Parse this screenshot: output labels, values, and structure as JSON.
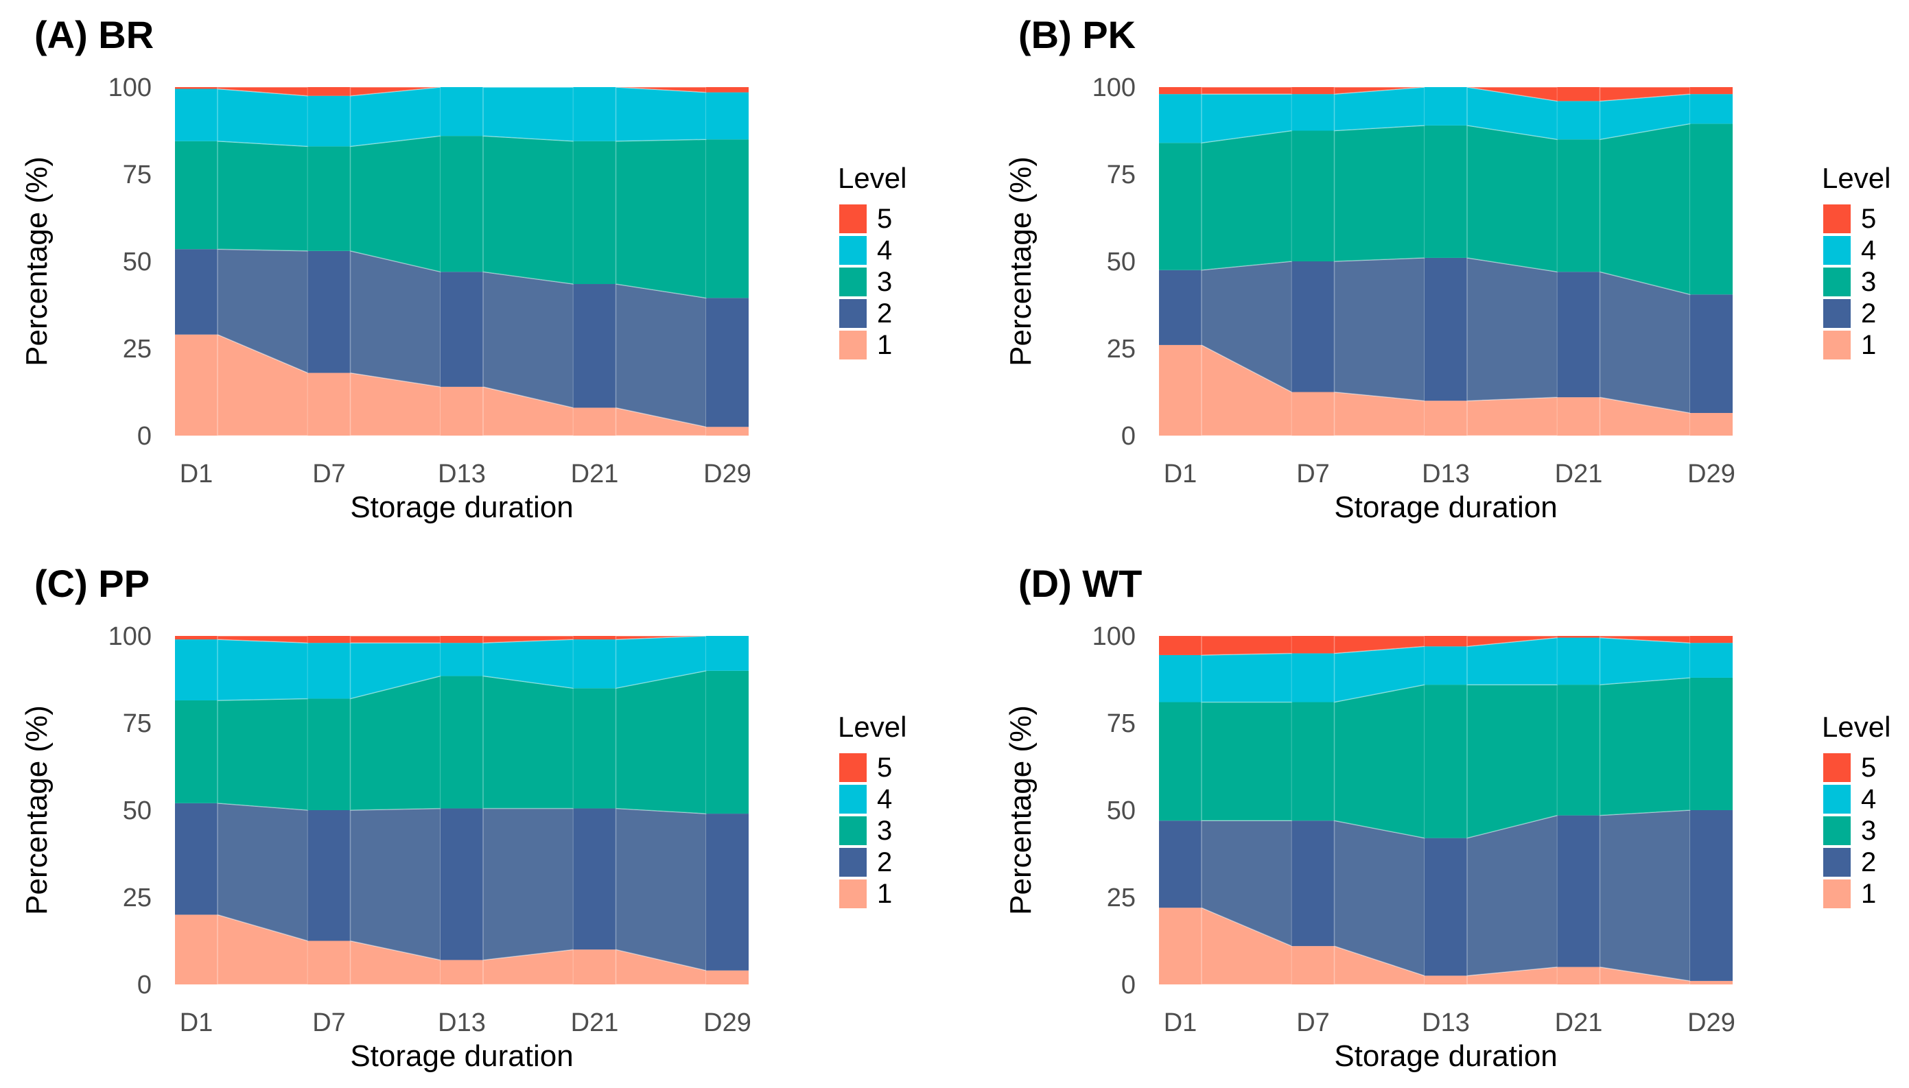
{
  "colors": {
    "5": "#FC5036",
    "4": "#00C2DB",
    "3": "#00AE94",
    "2": "#41629A",
    "flow2": "#52709D",
    "1": "#FFA68B"
  },
  "chart_data": [
    {
      "type": "area",
      "title": "(A) BR",
      "xlabel": "Storage duration",
      "ylabel": "Percentage (%)",
      "ylim": [
        0,
        100
      ],
      "yticks": [
        "0",
        "25",
        "50",
        "75",
        "100"
      ],
      "categories": [
        "D1",
        "D7",
        "D13",
        "D21",
        "D29"
      ],
      "legend_title": "Level",
      "legend": [
        "5",
        "4",
        "3",
        "2",
        "1"
      ],
      "legend_position": "right",
      "series": [
        {
          "name": "1",
          "values": [
            29,
            18,
            14,
            8,
            2.5
          ]
        },
        {
          "name": "2",
          "values": [
            24.5,
            35,
            33,
            35.5,
            37
          ]
        },
        {
          "name": "3",
          "values": [
            31,
            30,
            39,
            41,
            45.5
          ]
        },
        {
          "name": "4",
          "values": [
            15,
            14.5,
            14,
            15.5,
            13.5
          ]
        },
        {
          "name": "5",
          "values": [
            0.5,
            2.5,
            0,
            0,
            1.5
          ]
        }
      ]
    },
    {
      "type": "area",
      "title": "(B) PK",
      "xlabel": "Storage duration",
      "ylabel": "Percentage (%)",
      "ylim": [
        0,
        100
      ],
      "yticks": [
        "0",
        "25",
        "50",
        "75",
        "100"
      ],
      "categories": [
        "D1",
        "D7",
        "D13",
        "D21",
        "D29"
      ],
      "legend_title": "Level",
      "legend": [
        "5",
        "4",
        "3",
        "2",
        "1"
      ],
      "legend_position": "right",
      "series": [
        {
          "name": "1",
          "values": [
            26,
            12.5,
            10,
            11,
            6.5
          ]
        },
        {
          "name": "2",
          "values": [
            21.5,
            37.5,
            41,
            36,
            34
          ]
        },
        {
          "name": "3",
          "values": [
            36.5,
            37.5,
            38,
            38,
            49
          ]
        },
        {
          "name": "4",
          "values": [
            14,
            10.5,
            11,
            11,
            8.5
          ]
        },
        {
          "name": "5",
          "values": [
            2,
            2,
            0,
            4,
            2
          ]
        }
      ]
    },
    {
      "type": "area",
      "title": "(C) PP",
      "xlabel": "Storage duration",
      "ylabel": "Percentage (%)",
      "ylim": [
        0,
        100
      ],
      "yticks": [
        "0",
        "25",
        "50",
        "75",
        "100"
      ],
      "categories": [
        "D1",
        "D7",
        "D13",
        "D21",
        "D29"
      ],
      "legend_title": "Level",
      "legend": [
        "5",
        "4",
        "3",
        "2",
        "1"
      ],
      "legend_position": "right",
      "series": [
        {
          "name": "1",
          "values": [
            20,
            12.5,
            7,
            10,
            4
          ]
        },
        {
          "name": "2",
          "values": [
            32,
            37.5,
            43.5,
            40.5,
            45
          ]
        },
        {
          "name": "3",
          "values": [
            29.5,
            32,
            38,
            34.5,
            41
          ]
        },
        {
          "name": "4",
          "values": [
            17.5,
            16,
            9.5,
            14,
            10
          ]
        },
        {
          "name": "5",
          "values": [
            1,
            2,
            2,
            1,
            0
          ]
        }
      ]
    },
    {
      "type": "area",
      "title": "(D) WT",
      "xlabel": "Storage duration",
      "ylabel": "Percentage (%)",
      "ylim": [
        0,
        100
      ],
      "yticks": [
        "0",
        "25",
        "50",
        "75",
        "100"
      ],
      "categories": [
        "D1",
        "D7",
        "D13",
        "D21",
        "D29"
      ],
      "legend_title": "Level",
      "legend": [
        "5",
        "4",
        "3",
        "2",
        "1"
      ],
      "legend_position": "right",
      "series": [
        {
          "name": "1",
          "values": [
            22,
            11,
            2.5,
            5,
            1
          ]
        },
        {
          "name": "2",
          "values": [
            25,
            36,
            39.5,
            43.5,
            49
          ]
        },
        {
          "name": "3",
          "values": [
            34,
            34,
            44,
            37.5,
            38
          ]
        },
        {
          "name": "4",
          "values": [
            13.5,
            14,
            11,
            13.5,
            10
          ]
        },
        {
          "name": "5",
          "values": [
            5.5,
            5,
            3,
            0.5,
            2
          ]
        }
      ]
    }
  ]
}
